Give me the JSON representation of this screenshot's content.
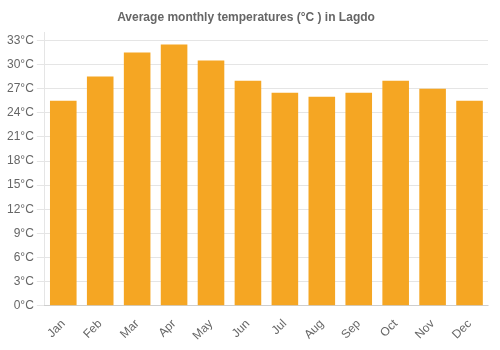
{
  "chart_data": {
    "type": "bar",
    "title": "Average monthly temperatures (°C ) in Lagdo",
    "categories": [
      "Jan",
      "Feb",
      "Mar",
      "Apr",
      "May",
      "Jun",
      "Jul",
      "Aug",
      "Sep",
      "Oct",
      "Nov",
      "Dec"
    ],
    "values": [
      25.5,
      28.5,
      31.5,
      32.5,
      30.5,
      28.0,
      26.5,
      26.0,
      26.5,
      28.0,
      27.0,
      25.5
    ],
    "color": "#F5A623",
    "ylim": [
      0,
      34
    ],
    "yticks": [
      {
        "value": 0,
        "label": "0°C"
      },
      {
        "value": 3,
        "label": "3°C"
      },
      {
        "value": 6,
        "label": "6°C"
      },
      {
        "value": 9,
        "label": "9°C"
      },
      {
        "value": 12,
        "label": "12°C"
      },
      {
        "value": 15,
        "label": "15°C"
      },
      {
        "value": 18,
        "label": "18°C"
      },
      {
        "value": 21,
        "label": "21°C"
      },
      {
        "value": 24,
        "label": "24°C"
      },
      {
        "value": 27,
        "label": "27°C"
      },
      {
        "value": 30,
        "label": "30°C"
      },
      {
        "value": 33,
        "label": "33°C"
      }
    ],
    "grid": true
  }
}
